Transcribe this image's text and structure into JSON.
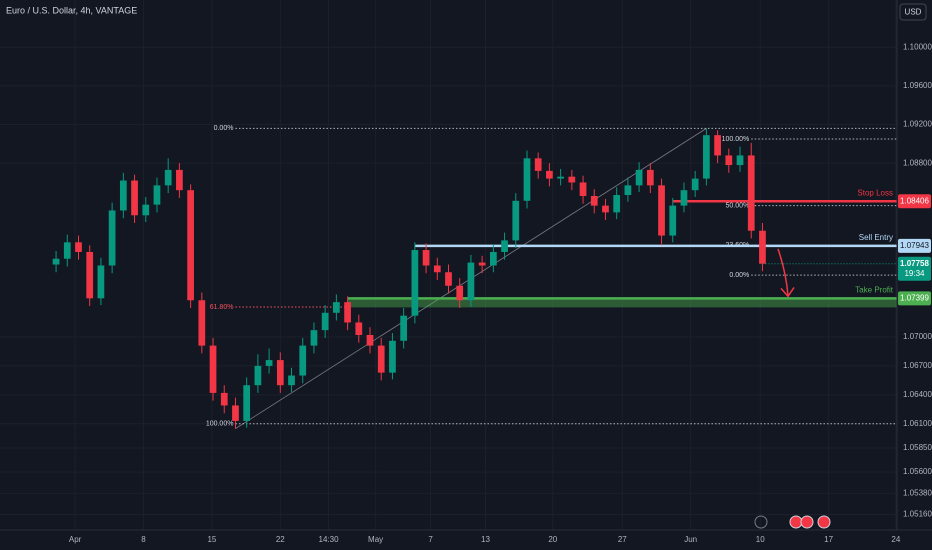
{
  "chart_data": {
    "type": "candlestick",
    "title": "Euro / U.S. Dollar, 4h, VANTAGE",
    "currency": "USD",
    "xlim": [
      -5,
      75
    ],
    "xticks": [
      {
        "value": 1.7,
        "label": "Apr"
      },
      {
        "value": 7.8,
        "label": "8"
      },
      {
        "value": 13.9,
        "label": "15"
      },
      {
        "value": 20.0,
        "label": "22"
      },
      {
        "value": 24.3,
        "label": "14:30"
      },
      {
        "value": 28.5,
        "label": "May"
      },
      {
        "value": 33.4,
        "label": "7"
      },
      {
        "value": 38.3,
        "label": "13"
      },
      {
        "value": 44.3,
        "label": "20"
      },
      {
        "value": 50.5,
        "label": "27"
      },
      {
        "value": 56.6,
        "label": "Jun"
      },
      {
        "value": 62.8,
        "label": "10"
      },
      {
        "value": 68.9,
        "label": "17"
      },
      {
        "value": 74.9,
        "label": "24"
      }
    ],
    "ylim": [
      1.05,
      1.1049
    ],
    "yticks": [
      {
        "value": 1.1,
        "label": "1.10000"
      },
      {
        "value": 1.096,
        "label": "1.09600"
      },
      {
        "value": 1.092,
        "label": "1.09200"
      },
      {
        "value": 1.088,
        "label": "1.08800"
      },
      {
        "value": 1.07,
        "label": "1.07000"
      },
      {
        "value": 1.067,
        "label": "1.06700"
      },
      {
        "value": 1.064,
        "label": "1.06400"
      },
      {
        "value": 1.061,
        "label": "1.06100"
      },
      {
        "value": 1.0585,
        "label": "1.05850"
      },
      {
        "value": 1.056,
        "label": "1.05600"
      },
      {
        "value": 1.0538,
        "label": "1.05380"
      },
      {
        "value": 1.0516,
        "label": "1.05160"
      }
    ],
    "grid": true,
    "up_color": "#089981",
    "down_color": "#f23645",
    "open": [
      1.0775,
      1.0781,
      1.0798,
      1.0788,
      1.074,
      1.0774,
      1.0831,
      1.0862,
      1.0826,
      1.0837,
      1.0857,
      1.0873,
      1.0852,
      1.0738,
      1.0691,
      1.0642,
      1.0629,
      1.0613,
      1.065,
      1.067,
      1.0676,
      1.065,
      1.066,
      1.0691,
      1.0707,
      1.0725,
      1.0736,
      1.0715,
      1.0702,
      1.0691,
      1.0663,
      1.0696,
      1.0722,
      1.079,
      1.0774,
      1.0767,
      1.0753,
      1.0738,
      1.0777,
      1.0774,
      1.0788,
      1.08,
      1.0841,
      1.0885,
      1.0872,
      1.0864,
      1.0866,
      1.086,
      1.0846,
      1.0836,
      1.0829,
      1.0847,
      1.0857,
      1.0873,
      1.0857,
      1.0805,
      1.0836,
      1.0852,
      1.0864,
      1.0909,
      1.0888,
      1.0878,
      1.0888,
      1.081
    ],
    "high": [
      1.0789,
      1.0806,
      1.0805,
      1.0795,
      1.0782,
      1.0839,
      1.087,
      1.0868,
      1.0845,
      1.0865,
      1.0885,
      1.088,
      1.0858,
      1.0746,
      1.0699,
      1.065,
      1.0637,
      1.0658,
      1.0682,
      1.0688,
      1.0684,
      1.0668,
      1.0699,
      1.0715,
      1.0733,
      1.0744,
      1.0742,
      1.0723,
      1.071,
      1.0699,
      1.0704,
      1.073,
      1.0798,
      1.0797,
      1.0782,
      1.0775,
      1.0761,
      1.0785,
      1.0784,
      1.0796,
      1.0808,
      1.0849,
      1.0893,
      1.0891,
      1.088,
      1.0874,
      1.0873,
      1.0867,
      1.0853,
      1.0843,
      1.0855,
      1.0865,
      1.0881,
      1.088,
      1.0864,
      1.0844,
      1.086,
      1.0872,
      1.0916,
      1.0914,
      1.0895,
      1.0897,
      1.0901,
      1.0818
    ],
    "low": [
      1.0767,
      1.0773,
      1.078,
      1.0732,
      1.0733,
      1.0766,
      1.0823,
      1.0818,
      1.0819,
      1.0829,
      1.0849,
      1.0844,
      1.073,
      1.0683,
      1.0634,
      1.0621,
      1.0605,
      1.0606,
      1.0642,
      1.0662,
      1.0642,
      1.0643,
      1.0652,
      1.0683,
      1.0699,
      1.0717,
      1.0707,
      1.0694,
      1.0683,
      1.0655,
      1.0656,
      1.0688,
      1.0714,
      1.0766,
      1.0759,
      1.0745,
      1.073,
      1.0731,
      1.0766,
      1.0767,
      1.078,
      1.0792,
      1.0833,
      1.0864,
      1.0856,
      1.0857,
      1.0852,
      1.0838,
      1.0828,
      1.0821,
      1.0822,
      1.084,
      1.085,
      1.0849,
      1.0795,
      1.0798,
      1.0829,
      1.0845,
      1.0857,
      1.088,
      1.087,
      1.0871,
      1.0802,
      1.0768
    ],
    "close": [
      1.0781,
      1.0798,
      1.0788,
      1.074,
      1.0774,
      1.0831,
      1.0862,
      1.0826,
      1.0837,
      1.0857,
      1.0873,
      1.0852,
      1.0738,
      1.0691,
      1.0642,
      1.0629,
      1.0613,
      1.065,
      1.067,
      1.0676,
      1.065,
      1.066,
      1.0691,
      1.0707,
      1.0725,
      1.0736,
      1.0715,
      1.0702,
      1.0691,
      1.0663,
      1.0696,
      1.0722,
      1.079,
      1.0774,
      1.0767,
      1.0753,
      1.0738,
      1.0777,
      1.0774,
      1.0788,
      1.08,
      1.0841,
      1.0885,
      1.0872,
      1.0864,
      1.0866,
      1.086,
      1.0846,
      1.0836,
      1.0829,
      1.0847,
      1.0857,
      1.0873,
      1.0857,
      1.0805,
      1.0836,
      1.0852,
      1.0864,
      1.0909,
      1.0888,
      1.0878,
      1.0888,
      1.081,
      1.07758
    ],
    "last_time": "19:34",
    "fibs": [
      {
        "levels": [
          {
            "value": 1.0916,
            "label": "0.00%"
          },
          {
            "value": 1.0731,
            "label": "61.80%"
          },
          {
            "value": 1.061,
            "label": "100.00%"
          }
        ]
      },
      {
        "levels": [
          {
            "value": 1.0905,
            "label": "100.00%"
          },
          {
            "value": 1.0836,
            "label": "50.00%"
          },
          {
            "value": 1.0795,
            "label": "23.60%"
          },
          {
            "value": 1.0764,
            "label": "0.00%"
          }
        ]
      }
    ],
    "levels": [
      {
        "label": "Stop Loss",
        "value": 1.08406,
        "color": "#f23645"
      },
      {
        "label": "Sell Entry",
        "value": 1.07943,
        "color": "#b2d8f5"
      },
      {
        "label": "Take Profit",
        "value": 1.07399,
        "color": "#4caf50"
      }
    ]
  }
}
